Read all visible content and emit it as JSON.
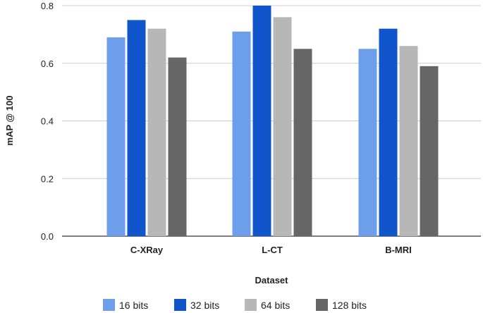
{
  "chart_data": {
    "type": "bar",
    "title": "",
    "xlabel": "Dataset",
    "ylabel": "mAP @ 100",
    "ylim": [
      0,
      0.8
    ],
    "yticks": [
      "0.0",
      "0.2",
      "0.4",
      "0.6",
      "0.8"
    ],
    "categories": [
      "C-XRay",
      "L-CT",
      "B-MRI"
    ],
    "series": [
      {
        "name": "16 bits",
        "color": "#6d9eeb",
        "values": [
          0.69,
          0.71,
          0.65
        ]
      },
      {
        "name": "32 bits",
        "color": "#1155cc",
        "values": [
          0.75,
          0.8,
          0.72
        ]
      },
      {
        "name": "64 bits",
        "color": "#b7b7b7",
        "values": [
          0.72,
          0.76,
          0.66
        ]
      },
      {
        "name": "128 bits",
        "color": "#666666",
        "values": [
          0.62,
          0.65,
          0.59
        ]
      }
    ],
    "grid": true,
    "legend": "bottom"
  }
}
